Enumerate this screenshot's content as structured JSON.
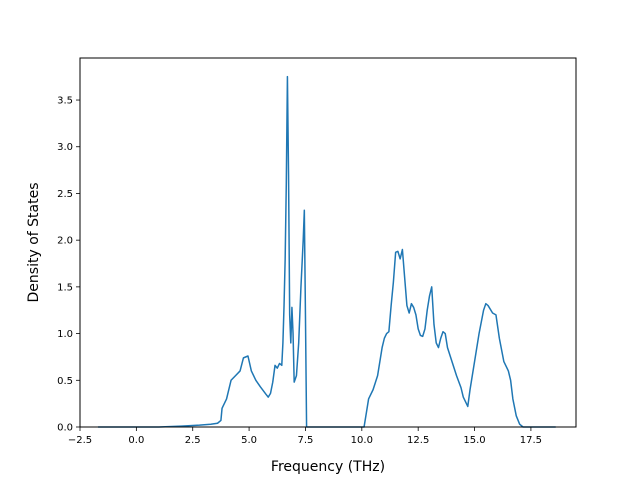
{
  "chart_data": {
    "type": "line",
    "title": "",
    "xlabel": "Frequency (THz)",
    "ylabel": "Density of States",
    "xlim": [
      -2.5,
      19.5
    ],
    "ylim": [
      0,
      3.95
    ],
    "grid": false,
    "legend": "none",
    "xticks": [
      {
        "value": -2.5,
        "label": "−2.5"
      },
      {
        "value": 0.0,
        "label": "0.0"
      },
      {
        "value": 2.5,
        "label": "2.5"
      },
      {
        "value": 5.0,
        "label": "5.0"
      },
      {
        "value": 7.5,
        "label": "7.5"
      },
      {
        "value": 10.0,
        "label": "10.0"
      },
      {
        "value": 12.5,
        "label": "12.5"
      },
      {
        "value": 15.0,
        "label": "15.0"
      },
      {
        "value": 17.5,
        "label": "17.5"
      }
    ],
    "yticks": [
      {
        "value": 0.0,
        "label": "0.0"
      },
      {
        "value": 0.5,
        "label": "0.5"
      },
      {
        "value": 1.0,
        "label": "1.0"
      },
      {
        "value": 1.5,
        "label": "1.5"
      },
      {
        "value": 2.0,
        "label": "2.0"
      },
      {
        "value": 2.5,
        "label": "2.5"
      },
      {
        "value": 3.0,
        "label": "3.0"
      },
      {
        "value": 3.5,
        "label": "3.5"
      }
    ],
    "series": [
      {
        "color": "#1f77b4",
        "points": [
          [
            -1.7,
            0.0
          ],
          [
            0.0,
            0.0
          ],
          [
            1.0,
            0.0
          ],
          [
            2.0,
            0.01
          ],
          [
            2.8,
            0.02
          ],
          [
            3.3,
            0.03
          ],
          [
            3.6,
            0.04
          ],
          [
            3.75,
            0.07
          ],
          [
            3.8,
            0.2
          ],
          [
            4.0,
            0.3
          ],
          [
            4.2,
            0.5
          ],
          [
            4.4,
            0.55
          ],
          [
            4.6,
            0.6
          ],
          [
            4.75,
            0.74
          ],
          [
            4.95,
            0.76
          ],
          [
            5.1,
            0.6
          ],
          [
            5.3,
            0.5
          ],
          [
            5.5,
            0.43
          ],
          [
            5.75,
            0.35
          ],
          [
            5.85,
            0.32
          ],
          [
            5.95,
            0.36
          ],
          [
            6.05,
            0.48
          ],
          [
            6.15,
            0.66
          ],
          [
            6.25,
            0.63
          ],
          [
            6.35,
            0.68
          ],
          [
            6.45,
            0.66
          ],
          [
            6.5,
            0.9
          ],
          [
            6.55,
            1.3
          ],
          [
            6.6,
            1.8
          ],
          [
            6.65,
            2.6
          ],
          [
            6.7,
            3.75
          ],
          [
            6.75,
            2.7
          ],
          [
            6.8,
            1.2
          ],
          [
            6.85,
            0.9
          ],
          [
            6.9,
            1.28
          ],
          [
            6.95,
            1.0
          ],
          [
            7.0,
            0.48
          ],
          [
            7.1,
            0.55
          ],
          [
            7.2,
            0.9
          ],
          [
            7.3,
            1.5
          ],
          [
            7.4,
            2.0
          ],
          [
            7.45,
            2.32
          ],
          [
            7.5,
            1.2
          ],
          [
            7.55,
            0.0
          ],
          [
            8.0,
            0.0
          ],
          [
            9.0,
            0.0
          ],
          [
            10.1,
            0.0
          ],
          [
            10.2,
            0.15
          ],
          [
            10.3,
            0.3
          ],
          [
            10.5,
            0.4
          ],
          [
            10.7,
            0.55
          ],
          [
            10.9,
            0.85
          ],
          [
            11.0,
            0.95
          ],
          [
            11.1,
            1.0
          ],
          [
            11.2,
            1.02
          ],
          [
            11.3,
            1.3
          ],
          [
            11.4,
            1.55
          ],
          [
            11.5,
            1.87
          ],
          [
            11.6,
            1.88
          ],
          [
            11.7,
            1.8
          ],
          [
            11.8,
            1.9
          ],
          [
            11.9,
            1.6
          ],
          [
            12.0,
            1.3
          ],
          [
            12.1,
            1.22
          ],
          [
            12.2,
            1.32
          ],
          [
            12.3,
            1.28
          ],
          [
            12.4,
            1.2
          ],
          [
            12.5,
            1.05
          ],
          [
            12.6,
            0.98
          ],
          [
            12.7,
            0.97
          ],
          [
            12.8,
            1.05
          ],
          [
            12.9,
            1.25
          ],
          [
            13.0,
            1.4
          ],
          [
            13.1,
            1.5
          ],
          [
            13.2,
            1.1
          ],
          [
            13.3,
            0.9
          ],
          [
            13.4,
            0.85
          ],
          [
            13.5,
            0.95
          ],
          [
            13.6,
            1.02
          ],
          [
            13.7,
            1.0
          ],
          [
            13.8,
            0.85
          ],
          [
            14.0,
            0.7
          ],
          [
            14.2,
            0.55
          ],
          [
            14.4,
            0.42
          ],
          [
            14.5,
            0.32
          ],
          [
            14.7,
            0.22
          ],
          [
            14.8,
            0.4
          ],
          [
            15.0,
            0.7
          ],
          [
            15.2,
            1.0
          ],
          [
            15.4,
            1.25
          ],
          [
            15.5,
            1.32
          ],
          [
            15.6,
            1.3
          ],
          [
            15.8,
            1.22
          ],
          [
            15.95,
            1.2
          ],
          [
            16.1,
            0.95
          ],
          [
            16.3,
            0.7
          ],
          [
            16.5,
            0.6
          ],
          [
            16.6,
            0.5
          ],
          [
            16.7,
            0.3
          ],
          [
            16.85,
            0.12
          ],
          [
            17.0,
            0.03
          ],
          [
            17.15,
            0.0
          ],
          [
            18.0,
            0.0
          ],
          [
            18.6,
            0.0
          ]
        ]
      }
    ]
  }
}
